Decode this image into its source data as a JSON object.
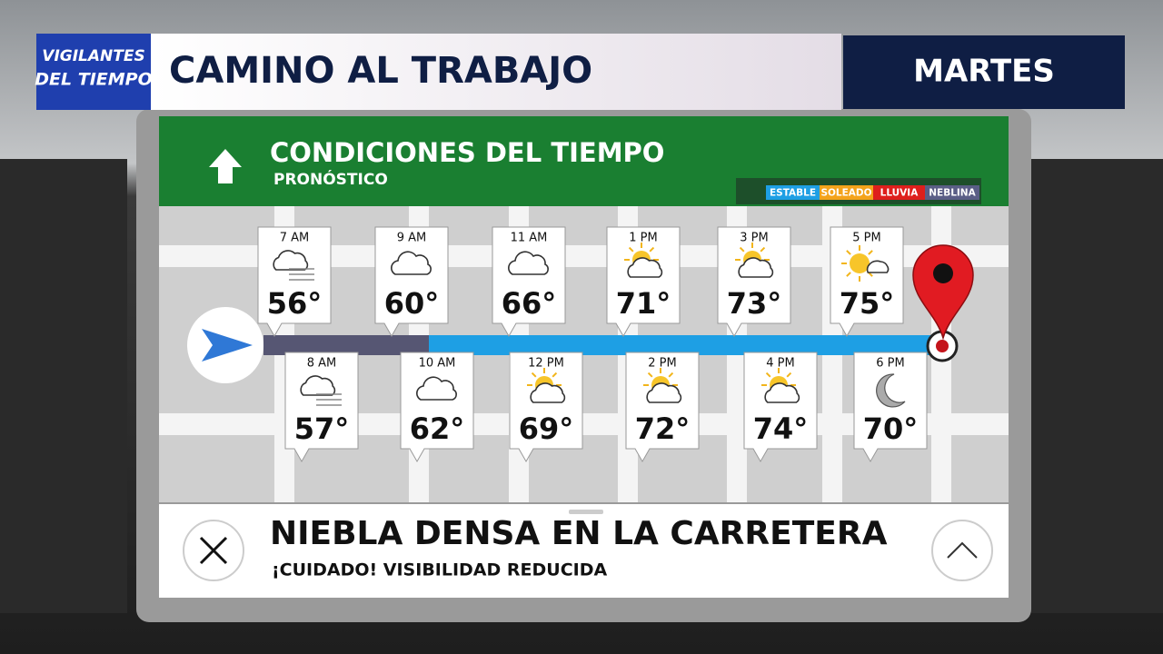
{
  "header": {
    "logo_line1": "VIGILANTES",
    "logo_line2": "DEL TIEMPO",
    "title": "CAMINO AL TRABAJO",
    "day": "MARTES"
  },
  "panel": {
    "title": "CONDICIONES DEL TIEMPO",
    "subtitle": "PRONÓSTICO",
    "legend": [
      {
        "label": "ESTABLE",
        "color": "#1e9fe4"
      },
      {
        "label": "SOLEADO",
        "color": "#f4a31b"
      },
      {
        "label": "LLUVIA",
        "color": "#de1f1c"
      },
      {
        "label": "NEBLINA",
        "color": "#5a5e86"
      }
    ]
  },
  "forecast": {
    "top_row": [
      {
        "time": "7 AM",
        "temp": "56°",
        "icon": "fog"
      },
      {
        "time": "9 AM",
        "temp": "60°",
        "icon": "cloudy"
      },
      {
        "time": "11 AM",
        "temp": "66°",
        "icon": "cloudy"
      },
      {
        "time": "1 PM",
        "temp": "71°",
        "icon": "partly-sunny"
      },
      {
        "time": "3 PM",
        "temp": "73°",
        "icon": "partly-sunny"
      },
      {
        "time": "5 PM",
        "temp": "75°",
        "icon": "mostly-sunny"
      }
    ],
    "bottom_row": [
      {
        "time": "8 AM",
        "temp": "57°",
        "icon": "fog"
      },
      {
        "time": "10 AM",
        "temp": "62°",
        "icon": "cloudy"
      },
      {
        "time": "12 PM",
        "temp": "69°",
        "icon": "partly-sunny"
      },
      {
        "time": "2 PM",
        "temp": "72°",
        "icon": "partly-sunny"
      },
      {
        "time": "4 PM",
        "temp": "74°",
        "icon": "partly-sunny"
      },
      {
        "time": "6 PM",
        "temp": "70°",
        "icon": "night"
      }
    ]
  },
  "alert": {
    "title": "NIEBLA DENSA EN LA CARRETERA",
    "subtitle": "¡CUIDADO! VISIBILIDAD REDUCIDA"
  }
}
